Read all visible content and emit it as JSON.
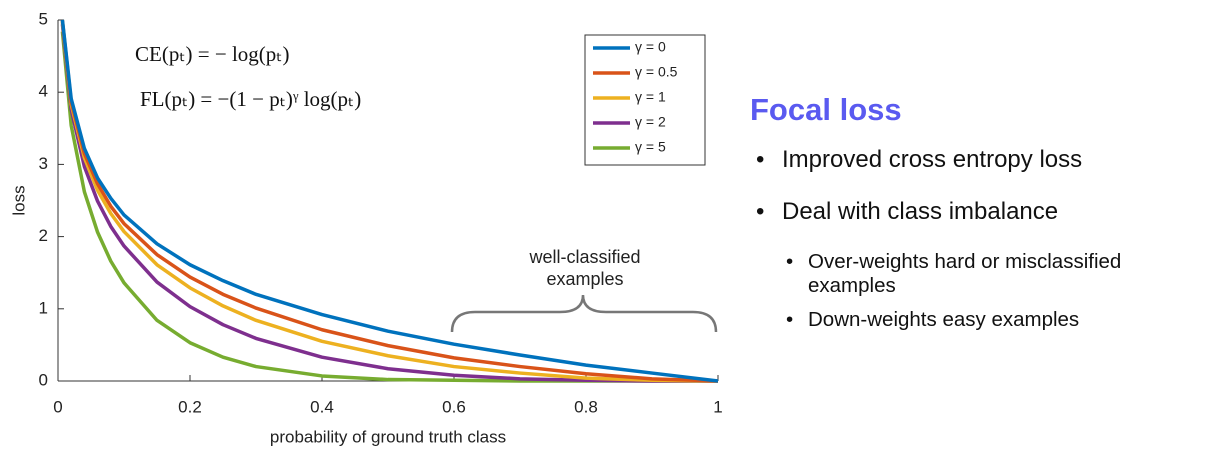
{
  "chart_data": {
    "type": "line",
    "xlabel": "probability of ground truth class",
    "ylabel": "loss",
    "x": [
      0.0067,
      0.02,
      0.04,
      0.06,
      0.08,
      0.1,
      0.15,
      0.2,
      0.25,
      0.3,
      0.4,
      0.5,
      0.6,
      0.7,
      0.8,
      0.9,
      1.0
    ],
    "series": [
      {
        "name": "γ = 0",
        "color": "#0072bd",
        "values": [
          5.0,
          3.91,
          3.22,
          2.81,
          2.53,
          2.3,
          1.9,
          1.61,
          1.39,
          1.2,
          0.92,
          0.69,
          0.51,
          0.36,
          0.22,
          0.11,
          0
        ]
      },
      {
        "name": "γ = 0.5",
        "color": "#d95319",
        "values": [
          4.99,
          3.87,
          3.15,
          2.73,
          2.42,
          2.18,
          1.75,
          1.44,
          1.2,
          1.01,
          0.71,
          0.49,
          0.32,
          0.2,
          0.1,
          0.03,
          0
        ]
      },
      {
        "name": "γ = 1",
        "color": "#edb120",
        "values": [
          4.97,
          3.83,
          3.09,
          2.64,
          2.32,
          2.07,
          1.61,
          1.29,
          1.04,
          0.84,
          0.55,
          0.35,
          0.2,
          0.11,
          0.04,
          0.01,
          0
        ]
      },
      {
        "name": "γ = 2",
        "color": "#7e2f8e",
        "values": [
          4.94,
          3.76,
          2.97,
          2.49,
          2.14,
          1.87,
          1.37,
          1.03,
          0.78,
          0.59,
          0.33,
          0.17,
          0.08,
          0.03,
          0.01,
          0,
          0
        ]
      },
      {
        "name": "γ = 5",
        "color": "#77ac30",
        "values": [
          4.84,
          3.54,
          2.62,
          2.06,
          1.66,
          1.36,
          0.84,
          0.53,
          0.33,
          0.2,
          0.07,
          0.02,
          0.01,
          0,
          0,
          0,
          0
        ]
      }
    ],
    "xlim": [
      0,
      1
    ],
    "xticks": [
      0,
      0.2,
      0.4,
      0.6,
      0.8,
      1
    ],
    "ylim": [
      0,
      5
    ],
    "yticks": [
      0,
      1,
      2,
      3,
      4,
      5
    ],
    "legend": "upper right",
    "formulas": [
      "CE(pₜ) = − log(pₜ)",
      "FL(pₜ) = −(1 − pₜ)ᵞ log(pₜ)"
    ],
    "annotation": "well-classified examples"
  },
  "slide": {
    "title": "Focal loss",
    "bullets": [
      "Improved cross entropy loss",
      "Deal with class imbalance"
    ],
    "sub_bullets": [
      "Over-weights hard or misclassified examples",
      "Down-weights easy examples"
    ]
  }
}
